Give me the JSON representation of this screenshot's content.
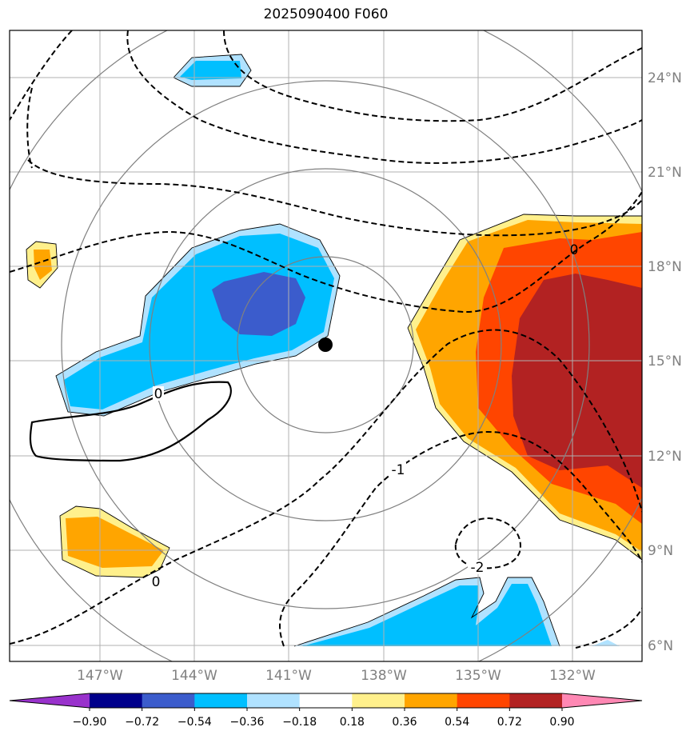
{
  "title": "2025090400 F060",
  "lat_labels": [
    "24°N",
    "21°N",
    "18°N",
    "15°N",
    "12°N",
    "9°N",
    "6°N"
  ],
  "lon_labels": [
    "147°W",
    "144°W",
    "141°W",
    "138°W",
    "135°W",
    "132°W"
  ],
  "colorbar": {
    "ticks": [
      "−0.90",
      "−0.72",
      "−0.54",
      "−0.36",
      "−0.18",
      "0.18",
      "0.36",
      "0.54",
      "0.72",
      "0.90"
    ],
    "colors": [
      "#9932cc",
      "#00008b",
      "#3b5ccc",
      "#00bfff",
      "#b0e2ff",
      "#ffffff",
      "#fff08c",
      "#ffa500",
      "#ff4500",
      "#b22222",
      "#ff88b4"
    ]
  },
  "contour_labels": {
    "c0_left": "0",
    "c0_bottom": "0",
    "c0_right": "0",
    "c_minus1": "-1",
    "c_minus2": "-2"
  },
  "colors": {
    "grid": "#b0b0b0",
    "ring": "#808080",
    "contour": "#000000"
  }
}
